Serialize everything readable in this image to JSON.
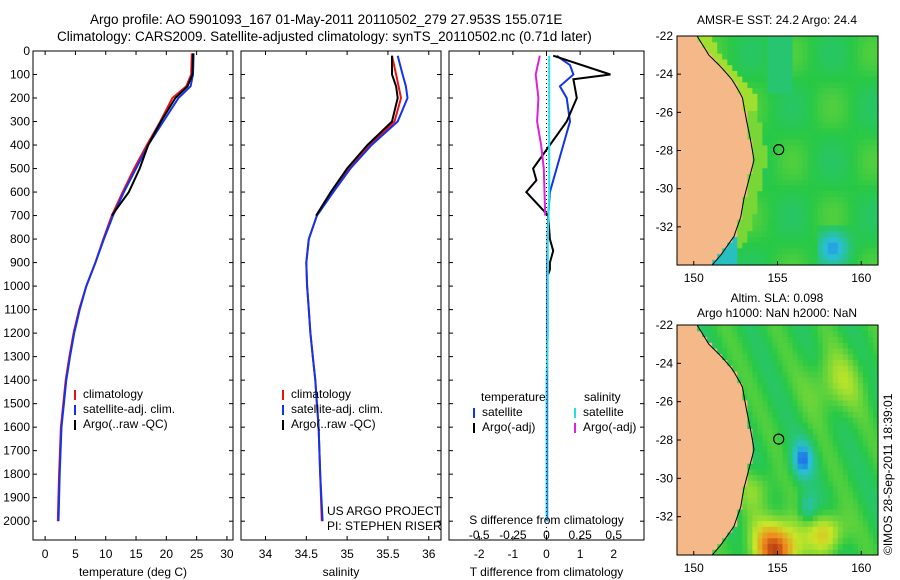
{
  "title_line1": "Argo profile: AO 5901093_167 01-May-2011 20110502_279 27.953S 155.071E",
  "title_line2": "Climatology: CARS2009. Satellite-adjusted climatology: synTS_20110502.nc (0.71d later)",
  "colors": {
    "climatology": "#ee1111",
    "satellite": "#1133ee",
    "argo": "#000000",
    "salinity_satellite": "#22e0e8",
    "salinity_argo": "#dd22dd",
    "land": "#f5b888"
  },
  "depth_axis": {
    "ticks": [
      0,
      100,
      200,
      300,
      400,
      500,
      600,
      700,
      800,
      900,
      1000,
      1100,
      1200,
      1300,
      1400,
      1500,
      1600,
      1700,
      1800,
      1900,
      2000
    ],
    "range": [
      0,
      2080
    ]
  },
  "chart_data": [
    {
      "id": "temperature",
      "type": "line",
      "xlabel": "temperature (deg C)",
      "ylabel": "",
      "xlim": [
        -2,
        31
      ],
      "ylim": [
        2080,
        0
      ],
      "xticks": [
        0,
        5,
        10,
        15,
        20,
        25,
        30
      ],
      "legend": {
        "placement": "lower-left",
        "entries": [
          "climatology",
          "satellite-adj. clim.",
          "Argo(..raw -QC)"
        ]
      },
      "series": [
        {
          "name": "climatology",
          "color": "#ee1111",
          "x": [
            24.2,
            24.1,
            23.3,
            21.0,
            19.0,
            16.8,
            14.7,
            12.8,
            11.0,
            9.6,
            8.3,
            6.8,
            5.6,
            4.7,
            4.0,
            3.4,
            3.0,
            2.6,
            2.3,
            2.1
          ],
          "y": [
            10,
            100,
            150,
            200,
            300,
            400,
            500,
            600,
            700,
            800,
            900,
            1000,
            1100,
            1200,
            1300,
            1400,
            1500,
            1600,
            1800,
            2000
          ]
        },
        {
          "name": "satellite-adj. clim.",
          "color": "#1133ee",
          "x": [
            24.5,
            24.4,
            24.0,
            22.0,
            19.5,
            17.0,
            15.0,
            13.0,
            11.2,
            9.7,
            8.3,
            6.8,
            5.7,
            4.8,
            4.1,
            3.5,
            3.1,
            2.7,
            2.4,
            2.2
          ],
          "y": [
            10,
            100,
            150,
            200,
            300,
            400,
            500,
            600,
            700,
            800,
            900,
            1000,
            1100,
            1200,
            1300,
            1400,
            1500,
            1600,
            1800,
            2000
          ]
        },
        {
          "name": "Argo(..raw -QC)",
          "color": "#000000",
          "x": [
            24.4,
            24.3,
            23.5,
            21.5,
            19.1,
            17.0,
            15.6,
            13.8,
            11.0
          ],
          "y": [
            10,
            100,
            150,
            200,
            300,
            400,
            500,
            600,
            700
          ]
        }
      ],
      "annotation": []
    },
    {
      "id": "salinity",
      "type": "line",
      "xlabel": "salinity",
      "ylabel": "",
      "xlim": [
        33.7,
        36.15
      ],
      "ylim": [
        2080,
        0
      ],
      "xticks": [
        34,
        34.5,
        35,
        35.5,
        36
      ],
      "legend": {
        "placement": "lower-left",
        "entries": [
          "climatology",
          "satellite-adj. clim.",
          "Argo(..raw -QC)"
        ]
      },
      "series": [
        {
          "name": "climatology",
          "color": "#ee1111",
          "x": [
            35.55,
            35.6,
            35.63,
            35.66,
            35.58,
            35.28,
            35.02,
            34.83,
            34.63,
            34.53,
            34.5,
            34.51,
            34.53,
            34.55,
            34.58,
            34.61,
            34.63,
            34.65,
            34.67,
            34.69
          ],
          "y": [
            20,
            100,
            150,
            200,
            300,
            400,
            500,
            600,
            700,
            800,
            900,
            1000,
            1100,
            1200,
            1300,
            1400,
            1500,
            1600,
            1800,
            2000
          ]
        },
        {
          "name": "satellite-adj. clim.",
          "color": "#1133ee",
          "x": [
            35.62,
            35.68,
            35.72,
            35.74,
            35.62,
            35.3,
            35.04,
            34.83,
            34.63,
            34.53,
            34.5,
            34.51,
            34.53,
            34.55,
            34.58,
            34.61,
            34.63,
            34.65,
            34.67,
            34.7
          ],
          "y": [
            20,
            100,
            150,
            200,
            300,
            400,
            500,
            600,
            700,
            800,
            900,
            1000,
            1100,
            1200,
            1300,
            1400,
            1500,
            1600,
            1800,
            2000
          ]
        },
        {
          "name": "Argo(..raw -QC)",
          "color": "#000000",
          "x": [
            35.55,
            35.55,
            35.6,
            35.62,
            35.55,
            35.25,
            35.0,
            34.8,
            34.62
          ],
          "y": [
            20,
            100,
            150,
            200,
            300,
            400,
            500,
            600,
            700
          ]
        }
      ],
      "annotation": [
        "US ARGO PROJECT",
        "PI: STEPHEN RISER"
      ]
    },
    {
      "id": "difference",
      "type": "line",
      "xlabel": "T difference from climatology",
      "xlabel_top": "S difference from climatology",
      "xlim": [
        -2.9,
        2.9
      ],
      "ylim": [
        2080,
        0
      ],
      "xticks": [
        -2,
        -1,
        0,
        1,
        2
      ],
      "xticks_s": [
        -0.5,
        -0.25,
        0,
        0.25,
        0.5
      ],
      "legend": {
        "placement": "lower-left",
        "headers": [
          "temperature",
          "salinity"
        ],
        "entries": [
          "satellite",
          "Argo(-adj)",
          "satellite",
          "Argo(-adj)"
        ]
      },
      "series": [
        {
          "name": "temperature satellite",
          "color": "#1133ee",
          "x": [
            0.3,
            0.7,
            0.8,
            0.4,
            0.6,
            0.7,
            0.5,
            0.3,
            0.1,
            0.05,
            0.03,
            0.02,
            0.02,
            0.02,
            0.02,
            0.02,
            0.02,
            0.02
          ],
          "y": [
            20,
            60,
            100,
            150,
            200,
            300,
            400,
            500,
            600,
            700,
            800,
            900,
            1000,
            1200,
            1400,
            1600,
            1800,
            2000
          ]
        },
        {
          "name": "temperature Argo(-adj)",
          "color": "#000000",
          "x": [
            0.2,
            1.9,
            0.8,
            0.9,
            0.6,
            0.1,
            -0.4,
            -0.3,
            -0.6,
            0.05,
            0.1,
            0.2,
            0.1,
            0.1,
            0.05
          ],
          "y": [
            20,
            100,
            120,
            200,
            300,
            400,
            500,
            550,
            600,
            700,
            800,
            850,
            900,
            930,
            950
          ]
        },
        {
          "name": "salinity satellite",
          "color": "#22e0e8",
          "x": [
            0.02,
            0.02,
            0.02,
            0.02,
            0.01,
            0.01,
            0.01,
            0.0,
            0.0,
            0.0,
            0.0
          ],
          "y": [
            20,
            200,
            400,
            600,
            800,
            1000,
            1200,
            1400,
            1600,
            1800,
            2000
          ]
        },
        {
          "name": "salinity Argo(-adj)",
          "color": "#dd22dd",
          "x": [
            -0.05,
            -0.08,
            -0.06,
            -0.07,
            -0.04,
            -0.02,
            -0.01
          ],
          "y": [
            20,
            100,
            200,
            300,
            400,
            500,
            700
          ]
        }
      ]
    },
    {
      "id": "sst-map",
      "type": "heatmap",
      "title": "AMSR-E SST: 24.2 Argo: 24.4",
      "xlim": [
        149,
        161
      ],
      "ylim": [
        -34,
        -22
      ],
      "xticks": [
        150,
        155,
        160
      ],
      "yticks": [
        -22,
        -24,
        -26,
        -28,
        -30,
        -32
      ],
      "marker": {
        "lon": 155.071,
        "lat": -27.953
      }
    },
    {
      "id": "sla-map",
      "type": "heatmap",
      "title_lines": [
        "Altim. SLA: 0.098",
        "Argo h1000: NaN h2000: NaN"
      ],
      "xlim": [
        149,
        161
      ],
      "ylim": [
        -34,
        -22
      ],
      "xticks": [
        150,
        155,
        160
      ],
      "yticks": [
        -22,
        -24,
        -26,
        -28,
        -30,
        -32
      ],
      "marker": {
        "lon": 155.071,
        "lat": -27.953
      }
    }
  ],
  "credit": "©IMOS 28-Sep-2011 18:39:01"
}
